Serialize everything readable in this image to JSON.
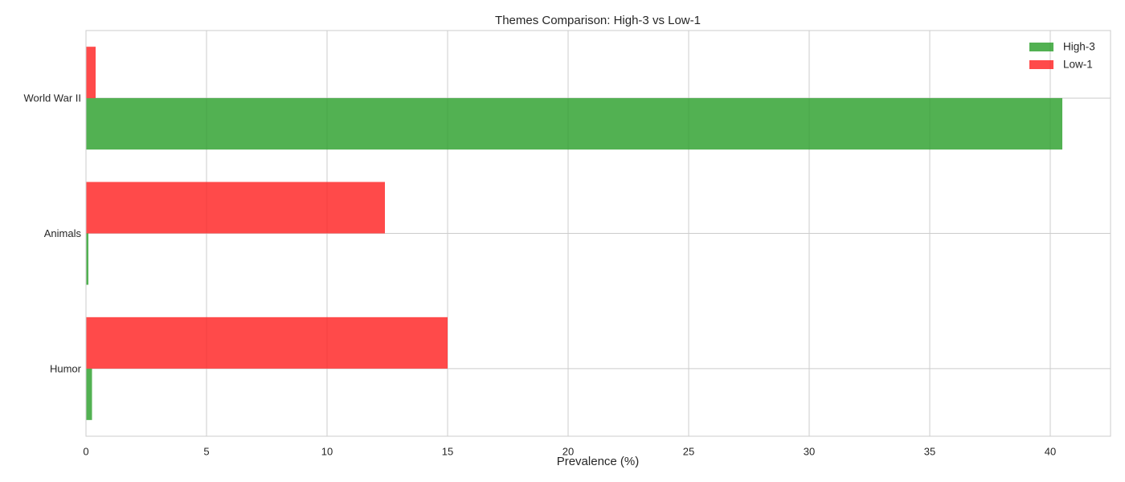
{
  "chart_data": {
    "type": "bar",
    "orientation": "horizontal",
    "title": "Themes Comparison: High-3 vs Low-1",
    "xlabel": "Prevalence (%)",
    "ylabel": "",
    "categories": [
      "World War II",
      "Animals",
      "Humor"
    ],
    "xlim": [
      0,
      42.5
    ],
    "xticks": [
      0,
      5,
      10,
      15,
      20,
      25,
      30,
      35,
      40
    ],
    "grid": true,
    "legend_position": "top-right",
    "series": [
      {
        "name": "High-3",
        "values": [
          40.5,
          0.1,
          0.25
        ],
        "color": "#2ca02c"
      },
      {
        "name": "Low-1",
        "values": [
          0.4,
          12.4,
          15.0
        ],
        "color": "#ff2222"
      }
    ]
  }
}
